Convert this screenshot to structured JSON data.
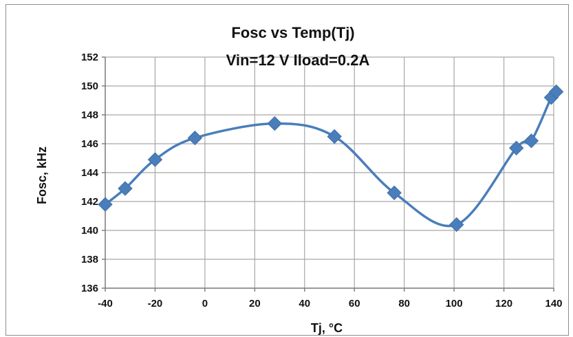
{
  "chart_data": {
    "type": "line",
    "title_line1": "Fosc  vs Temp(Tj)",
    "title_line2": "Vin=12 V Iload=0.2A",
    "xlabel": "Tj, °C",
    "ylabel": "Fosc, kHz",
    "xlim": [
      -40,
      140
    ],
    "ylim": [
      136,
      152
    ],
    "x_ticks": [
      -40,
      -20,
      0,
      20,
      40,
      60,
      80,
      100,
      120,
      140
    ],
    "y_ticks": [
      136,
      138,
      140,
      142,
      144,
      146,
      148,
      150,
      152
    ],
    "grid": true,
    "smooth": true,
    "series": [
      {
        "color": "#4a7ebb",
        "x": [
          -40,
          -32,
          -20,
          -4,
          28,
          52,
          76,
          101,
          125,
          131,
          139,
          141
        ],
        "y": [
          141.8,
          142.9,
          144.9,
          146.4,
          147.4,
          146.5,
          142.6,
          140.4,
          145.7,
          146.2,
          149.2,
          149.6
        ]
      }
    ],
    "colors": {
      "grid": "#a6a6a6",
      "axis": "#7f7f7f"
    }
  }
}
